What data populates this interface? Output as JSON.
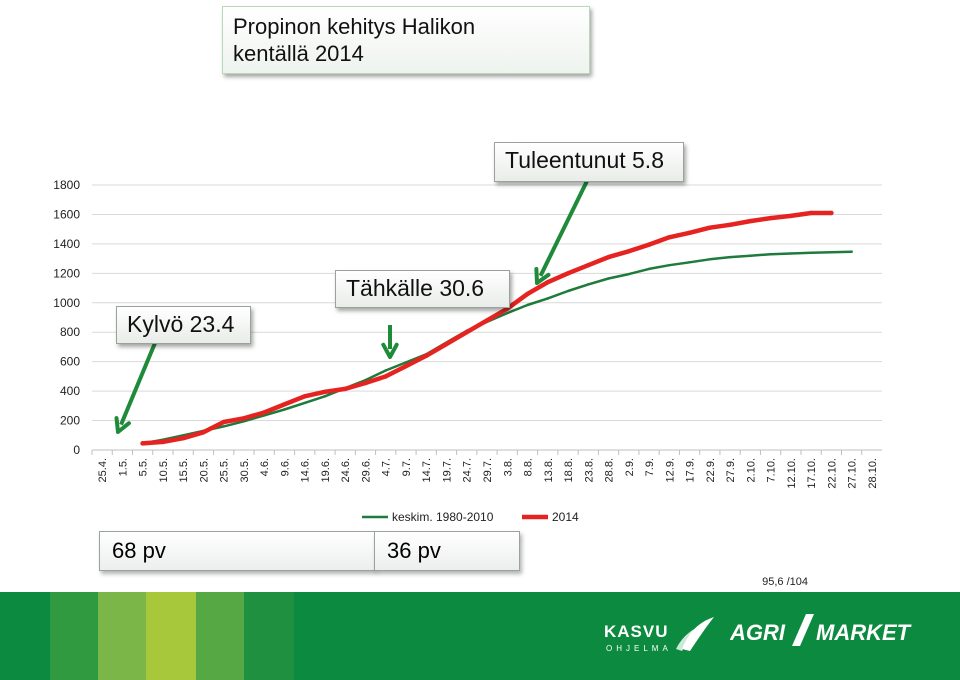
{
  "title": "Propinon kehitys Halikon\nkentällä 2014",
  "chart_data": {
    "type": "line",
    "categories": [
      "25.4.",
      "1.5.",
      "5.5.",
      "10.5.",
      "15.5.",
      "20.5.",
      "25.5.",
      "30.5.",
      "4.6.",
      "9.6.",
      "14.6.",
      "19.6.",
      "24.6.",
      "29.6.",
      "4.7.",
      "9.7.",
      "14.7.",
      "19.7.",
      "24.7.",
      "29.7.",
      "3.8.",
      "8.8.",
      "13.8.",
      "18.8.",
      "23.8.",
      "28.8.",
      "2.9.",
      "7.9.",
      "12.9.",
      "17.9.",
      "22.9.",
      "27.9.",
      "2.10.",
      "7.10.",
      "12.10.",
      "17.10.",
      "22.10.",
      "27.10.",
      "28.10."
    ],
    "yticks": [
      0,
      200,
      400,
      600,
      800,
      1000,
      1200,
      1400,
      1600,
      1800
    ],
    "ylim": [
      0,
      1800
    ],
    "grid": true,
    "legend_position": "bottom",
    "series": [
      {
        "name": "keskim. 1980-2010",
        "color": "#1e7b3c",
        "values": [
          null,
          null,
          45,
          70,
          100,
          130,
          160,
          195,
          235,
          275,
          320,
          365,
          420,
          475,
          540,
          595,
          650,
          730,
          810,
          870,
          930,
          985,
          1030,
          1080,
          1125,
          1165,
          1195,
          1230,
          1255,
          1275,
          1295,
          1310,
          1320,
          1330,
          1335,
          1340,
          1343,
          1347,
          null
        ]
      },
      {
        "name": "2014",
        "color": "#e52421",
        "values": [
          null,
          null,
          45,
          55,
          80,
          120,
          190,
          215,
          255,
          310,
          365,
          395,
          415,
          455,
          500,
          570,
          640,
          720,
          800,
          880,
          960,
          1060,
          1140,
          1200,
          1255,
          1310,
          1350,
          1395,
          1445,
          1475,
          1510,
          1530,
          1555,
          1575,
          1590,
          1610,
          1610,
          null,
          null
        ]
      }
    ]
  },
  "annotations": {
    "kylvo": "Kylvö 23.4",
    "tahkalle": "Tähkälle  30.6",
    "tuleentunut": "Tuleentunut 5.8"
  },
  "durations": {
    "first": "68 pv",
    "second": "36 pv"
  },
  "footnote": "95,6 /104",
  "logos": {
    "kasvu": "KASVU",
    "kasvu_sub": "OHJELMA",
    "agri": "AGRI",
    "market": "MARKET"
  },
  "colors": {
    "footer": "#0c8a3f",
    "arrow": "#1e8a3a",
    "grid": "#d9d9d9",
    "axis": "#bfbfbf"
  }
}
